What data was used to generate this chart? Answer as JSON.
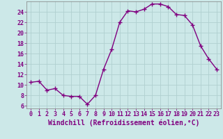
{
  "x": [
    0,
    1,
    2,
    3,
    4,
    5,
    6,
    7,
    8,
    9,
    10,
    11,
    12,
    13,
    14,
    15,
    16,
    17,
    18,
    19,
    20,
    21,
    22,
    23
  ],
  "y": [
    10.5,
    10.7,
    9.0,
    9.3,
    8.0,
    7.8,
    7.8,
    6.3,
    8.0,
    13.0,
    16.8,
    22.0,
    24.2,
    24.0,
    24.5,
    25.5,
    25.5,
    25.0,
    23.5,
    23.3,
    21.5,
    17.5,
    15.0,
    13.0
  ],
  "line_color": "#800080",
  "marker": "+",
  "marker_size": 4,
  "background_color": "#cce8e8",
  "grid_color": "#b0d0d0",
  "xlabel": "Windchill (Refroidissement éolien,°C)",
  "xlim": [
    -0.5,
    23.5
  ],
  "ylim": [
    5.5,
    26.0
  ],
  "yticks": [
    6,
    8,
    10,
    12,
    14,
    16,
    18,
    20,
    22,
    24
  ],
  "xticks": [
    0,
    1,
    2,
    3,
    4,
    5,
    6,
    7,
    8,
    9,
    10,
    11,
    12,
    13,
    14,
    15,
    16,
    17,
    18,
    19,
    20,
    21,
    22,
    23
  ],
  "tick_color": "#800080",
  "label_color": "#800080",
  "font_size": 6,
  "xlabel_fontsize": 7,
  "line_width": 1.0,
  "markeredgewidth": 1.0,
  "spine_color": "#808080"
}
